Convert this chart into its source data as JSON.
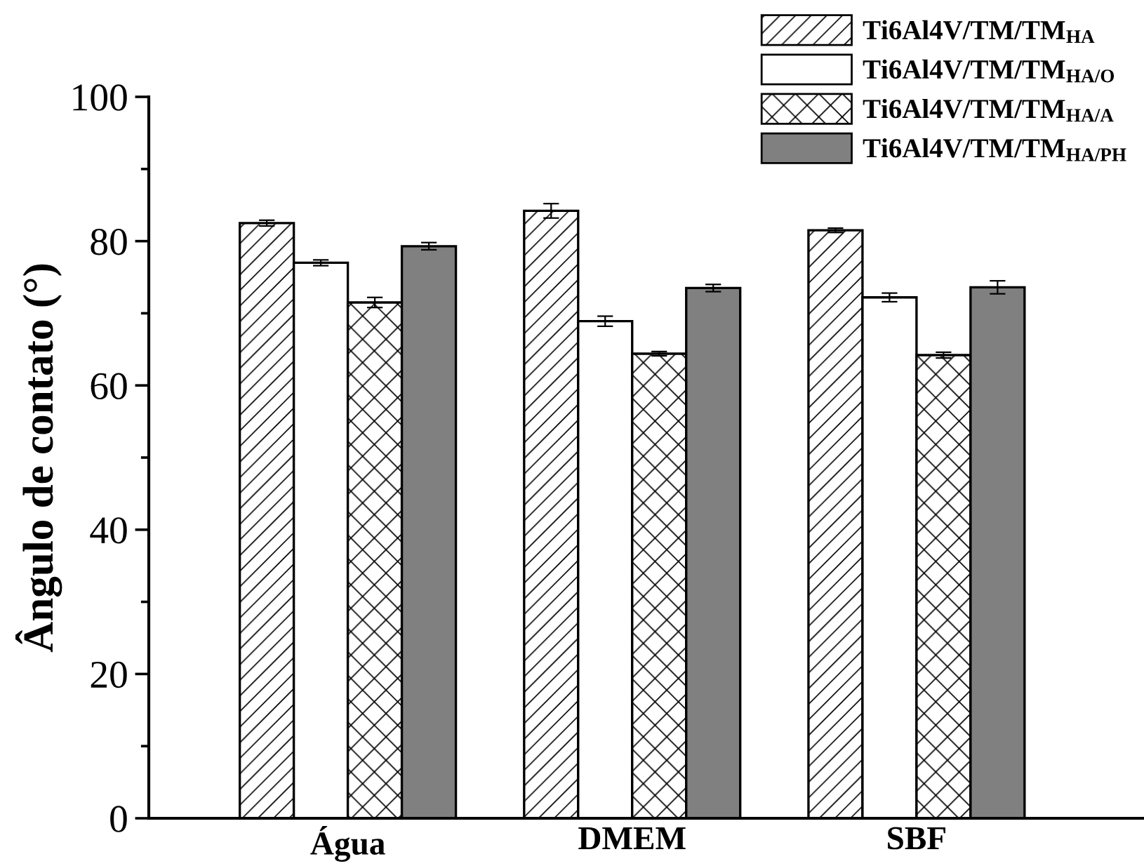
{
  "chart_data": {
    "type": "bar",
    "ylabel": "Ângulo de contato (°)",
    "categories": [
      "Água",
      "DMEM",
      "SBF"
    ],
    "series": [
      {
        "name": "Ti6Al4V/TM/TM$_{HA}$",
        "color": "#000000",
        "values": [
          82.5,
          84.2,
          81.5
        ],
        "errors": [
          0.4,
          1.0,
          0.3
        ]
      },
      {
        "name": "Ti6Al4V/TM/TM$_{HA/O}$",
        "color": "#ffffff",
        "values": [
          77.0,
          68.9,
          72.2
        ],
        "errors": [
          0.4,
          0.7,
          0.6
        ]
      },
      {
        "name": "Ti6Al4V/TM/TM$_{HA/A}$",
        "color": "#000000",
        "values": [
          71.5,
          64.4,
          64.2
        ],
        "errors": [
          0.7,
          0.3,
          0.4
        ]
      },
      {
        "name": "Ti6Al4V/TM/TM$_{HA/PH}$",
        "color": "#808080",
        "values": [
          79.3,
          73.5,
          73.6
        ],
        "errors": [
          0.5,
          0.5,
          0.9
        ]
      }
    ],
    "ylim": [
      0,
      100
    ],
    "yticks": [
      0,
      20,
      40,
      60,
      80,
      100
    ],
    "grid": false,
    "legend": "top right"
  }
}
